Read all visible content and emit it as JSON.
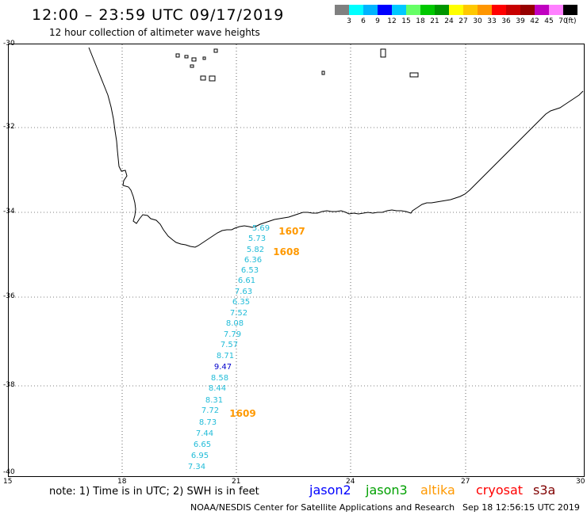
{
  "header": {
    "title": "12:00 – 23:59 UTC 09/17/2019",
    "subtitle": "12 hour collection of altimeter wave heights"
  },
  "legend": {
    "unit": "(ft)",
    "swatches": [
      {
        "color": "#808080",
        "label": ""
      },
      {
        "color": "#00ffff",
        "label": "3"
      },
      {
        "color": "#00b4ff",
        "label": "6"
      },
      {
        "color": "#0000ff",
        "label": "9"
      },
      {
        "color": "#00c8ff",
        "label": "12"
      },
      {
        "color": "#66ff66",
        "label": "15"
      },
      {
        "color": "#00c800",
        "label": "18"
      },
      {
        "color": "#009600",
        "label": "21"
      },
      {
        "color": "#ffff00",
        "label": "24"
      },
      {
        "color": "#ffc800",
        "label": "27"
      },
      {
        "color": "#ff9600",
        "label": "30"
      },
      {
        "color": "#ff0000",
        "label": "33"
      },
      {
        "color": "#c80000",
        "label": "36"
      },
      {
        "color": "#960000",
        "label": "39"
      },
      {
        "color": "#c000c0",
        "label": "42"
      },
      {
        "color": "#ff80ff",
        "label": "45"
      },
      {
        "color": "#000000",
        "label": "70"
      }
    ]
  },
  "axes": {
    "lat_labels": [
      "-30",
      "-32",
      "-34",
      "-36",
      "-38",
      "-40"
    ],
    "lon_labels": [
      "15",
      "18",
      "21",
      "24",
      "27",
      "30"
    ]
  },
  "track": {
    "wave_color": "#22bcd8",
    "peak_color": "#0000cc",
    "time_color": "#ff9900",
    "points": [
      {
        "value": "5.69",
        "peak": false
      },
      {
        "value": "5.73",
        "peak": false
      },
      {
        "value": "5.82",
        "peak": false
      },
      {
        "value": "6.36",
        "peak": false
      },
      {
        "value": "6.53",
        "peak": false
      },
      {
        "value": "6.61",
        "peak": false
      },
      {
        "value": "7.63",
        "peak": false
      },
      {
        "value": "6.35",
        "peak": false
      },
      {
        "value": "7.52",
        "peak": false
      },
      {
        "value": "8.08",
        "peak": false
      },
      {
        "value": "7.79",
        "peak": false
      },
      {
        "value": "7.57",
        "peak": false
      },
      {
        "value": "8.71",
        "peak": false
      },
      {
        "value": "9.47",
        "peak": true
      },
      {
        "value": "8.58",
        "peak": false
      },
      {
        "value": "8.44",
        "peak": false
      },
      {
        "value": "8.31",
        "peak": false
      },
      {
        "value": "7.72",
        "peak": false
      },
      {
        "value": "8.73",
        "peak": false
      },
      {
        "value": "7.44",
        "peak": false
      },
      {
        "value": "6.65",
        "peak": false
      },
      {
        "value": "6.95",
        "peak": false
      },
      {
        "value": "7.34",
        "peak": false
      }
    ],
    "times": [
      "1607",
      "1608",
      "1609"
    ]
  },
  "footer": {
    "note": "note:  1) Time is in UTC;  2) SWH is in feet",
    "satellites": [
      {
        "name": "jason2",
        "color": "#0000ff"
      },
      {
        "name": "jason3",
        "color": "#00a000"
      },
      {
        "name": "altika",
        "color": "#ff9900"
      },
      {
        "name": "cryosat",
        "color": "#ff0000"
      },
      {
        "name": "s3a",
        "color": "#800000"
      }
    ],
    "credit": "NOAA/NESDIS Center for Satellite Applications and Research",
    "timestamp": "Sep 18 12:56:15 UTC 2019"
  }
}
